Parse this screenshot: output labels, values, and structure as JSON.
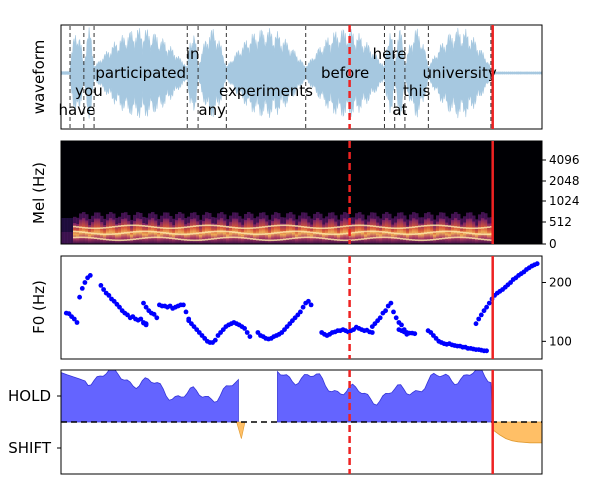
{
  "colors": {
    "waveform": "#a6c8e0",
    "f0_points": "#0000ff",
    "hold_fill": "#6464ff",
    "shift_fill": "#ffbf66",
    "marker_red": "#ee2222",
    "word_lines": "#333333"
  },
  "chart_data": [
    {
      "type": "area",
      "panel": "waveform",
      "ylabel": "waveform",
      "x_range": [
        0,
        8.0
      ],
      "words": [
        {
          "text": "have",
          "start": 0.15,
          "end": 0.38,
          "row": 0
        },
        {
          "text": "you",
          "start": 0.38,
          "end": 0.55,
          "row": 1
        },
        {
          "text": "participated",
          "start": 0.55,
          "end": 2.1,
          "row": 2
        },
        {
          "text": "in",
          "start": 2.1,
          "end": 2.28,
          "row": 3
        },
        {
          "text": "any",
          "start": 2.28,
          "end": 2.75,
          "row": 0
        },
        {
          "text": "experiments",
          "start": 2.75,
          "end": 4.07,
          "row": 1
        },
        {
          "text": "before",
          "start": 4.07,
          "end": 5.38,
          "row": 2
        },
        {
          "text": "here",
          "start": 5.38,
          "end": 5.55,
          "row": 3
        },
        {
          "text": "at",
          "start": 5.55,
          "end": 5.72,
          "row": 0
        },
        {
          "text": "this",
          "start": 5.72,
          "end": 6.11,
          "row": 1
        },
        {
          "text": "university",
          "start": 6.11,
          "end": 7.15,
          "row": 2
        }
      ],
      "vad_end_marker_x": 7.18,
      "prediction_marker_x": 4.8
    },
    {
      "type": "heatmap",
      "panel": "mel-spectrogram",
      "ylabel": "Mel (Hz)",
      "yticks": [
        "0",
        "512",
        "1024",
        "2048",
        "4096"
      ],
      "x_range": [
        0,
        8.0
      ]
    },
    {
      "type": "scatter",
      "panel": "f0",
      "ylabel": "F0 (Hz)",
      "ylim": [
        70,
        245
      ],
      "yticks": [
        "100",
        "200"
      ],
      "segments": [
        {
          "x": [
            0.1,
            0.15,
            0.2,
            0.25,
            0.3,
            0.35,
            0.4,
            0.45,
            0.5,
            0.55
          ],
          "y": [
            148,
            147,
            142,
            138,
            132,
            175,
            190,
            200,
            208,
            212
          ]
        },
        {
          "x": [
            0.75,
            0.8,
            0.85,
            0.9,
            0.95,
            1.0,
            1.05,
            1.1,
            1.15,
            1.2,
            1.25,
            1.3,
            1.35,
            1.4,
            1.45,
            1.5,
            1.55,
            1.6
          ],
          "y": [
            195,
            188,
            182,
            178,
            172,
            168,
            163,
            158,
            152,
            148,
            145,
            140,
            142,
            138,
            136,
            138,
            132,
            130
          ]
        },
        {
          "x": [
            1.55,
            1.6,
            1.65,
            1.7,
            1.75,
            1.8
          ],
          "y": [
            165,
            158,
            152,
            148,
            146,
            140
          ]
        },
        {
          "x": [
            1.55,
            1.6
          ],
          "y": [
            131,
            128
          ]
        },
        {
          "x": [
            1.85,
            1.9,
            1.95,
            2.0,
            2.05,
            2.1,
            2.15,
            2.2,
            2.25,
            2.3,
            2.35,
            2.4
          ],
          "y": [
            162,
            160,
            160,
            158,
            160,
            156,
            158,
            160,
            162,
            162,
            150,
            138
          ]
        },
        {
          "x": [
            2.4,
            2.45,
            2.5,
            2.55,
            2.6,
            2.65,
            2.7,
            2.75,
            2.8,
            2.85,
            2.9,
            2.95,
            3.0,
            3.05,
            3.1,
            3.15,
            3.2,
            3.25,
            3.3,
            3.35,
            3.4,
            3.45,
            3.5,
            3.55
          ],
          "y": [
            135,
            130,
            125,
            120,
            115,
            110,
            105,
            100,
            98,
            98,
            102,
            110,
            115,
            120,
            125,
            128,
            130,
            132,
            130,
            128,
            125,
            122,
            115,
            108
          ]
        },
        {
          "x": [
            3.7,
            3.75,
            3.8,
            3.85,
            3.9,
            3.95,
            4.0,
            4.05,
            4.1,
            4.15,
            4.2,
            4.25,
            4.3,
            4.35,
            4.4,
            4.45,
            4.5,
            4.55,
            4.6,
            4.65,
            4.7
          ],
          "y": [
            115,
            110,
            108,
            105,
            104,
            105,
            108,
            110,
            112,
            115,
            120,
            125,
            130,
            135,
            140,
            145,
            150,
            158,
            165,
            168,
            162
          ]
        },
        {
          "x": [
            4.9,
            4.95,
            5.0,
            5.05,
            5.1,
            5.15,
            5.2,
            5.25,
            5.3,
            5.35,
            5.4,
            5.45,
            5.5,
            5.55,
            5.6,
            5.65,
            5.7,
            5.75,
            5.8,
            5.85
          ],
          "y": [
            115,
            112,
            110,
            112,
            115,
            116,
            118,
            118,
            120,
            118,
            116,
            118,
            120,
            124,
            122,
            120,
            118,
            119,
            116,
            115
          ]
        },
        {
          "x": [
            5.85,
            5.9,
            5.95,
            6.0,
            6.05,
            6.1,
            6.15,
            6.2,
            6.25,
            6.3,
            6.35,
            6.4,
            6.45,
            6.5
          ],
          "y": [
            125,
            130,
            135,
            140,
            148,
            152,
            160,
            165,
            150,
            140,
            132,
            128,
            120,
            112
          ]
        },
        {
          "x": [
            6.35,
            6.4,
            6.45,
            6.5,
            6.55,
            6.6,
            6.65
          ],
          "y": [
            120,
            118,
            116,
            115,
            114,
            114,
            113
          ]
        },
        {
          "x": [
            6.9,
            6.95,
            7.0,
            7.05,
            7.1,
            7.15,
            7.2,
            7.25,
            7.3,
            7.35,
            7.4,
            7.45,
            7.5,
            7.55,
            7.6,
            7.65,
            7.7,
            7.75,
            7.8,
            7.85,
            7.9,
            7.95,
            8.0
          ],
          "y": [
            118,
            115,
            110,
            105,
            100,
            98,
            96,
            95,
            96,
            94,
            93,
            92,
            92,
            90,
            90,
            88,
            88,
            87,
            86,
            86,
            85,
            84,
            84
          ]
        },
        {
          "x": [
            7.8,
            7.85,
            7.9,
            7.95,
            8.0,
            8.05,
            8.1,
            8.15,
            8.2,
            8.25,
            8.3,
            8.35,
            8.4,
            8.45,
            8.5,
            8.55,
            8.6,
            8.65,
            8.7,
            8.75,
            8.8,
            8.85,
            8.9,
            8.95
          ],
          "y": [
            130,
            138,
            145,
            152,
            158,
            165,
            172,
            178,
            182,
            185,
            188,
            192,
            196,
            200,
            205,
            208,
            212,
            215,
            218,
            222,
            225,
            228,
            230,
            232
          ]
        }
      ]
    },
    {
      "type": "area",
      "panel": "turn-taking",
      "yticks": [
        "HOLD",
        "SHIFT"
      ],
      "ylim": [
        -1,
        1
      ],
      "hold_profile": {
        "x": [
          0.0,
          0.1,
          0.2,
          0.3,
          0.4,
          0.5,
          0.6,
          0.7,
          0.8,
          0.9,
          1.0,
          1.1,
          1.2,
          1.3,
          1.4,
          1.5,
          1.6,
          1.7,
          1.8,
          1.9,
          2.0,
          2.1,
          2.2,
          2.3,
          2.4,
          2.5,
          2.6,
          2.7,
          2.8,
          2.9,
          3.0,
          3.1,
          3.2,
          3.3,
          3.4,
          3.5,
          3.6,
          3.7,
          3.8,
          3.9,
          4.0
        ],
        "y": [
          0.95,
          0.92,
          0.9,
          0.85,
          0.8,
          0.78,
          0.7,
          0.72,
          0.68,
          0.6,
          0.65,
          0.7,
          0.58,
          0.62,
          0.55,
          0.5,
          0.6,
          0.62,
          0.48,
          0.52,
          0.45,
          0.55,
          0.6,
          0.5,
          0.42,
          0.4,
          0.35,
          0.3,
          0.25,
          0.15,
          0.05,
          0.0,
          0.0,
          0.0,
          0.0,
          0.0,
          0.05,
          0.1,
          0.2,
          0.35,
          0.5
        ]
      },
      "shift_profile": {
        "x": [
          7.18,
          7.3,
          7.4,
          7.5,
          7.6,
          7.7,
          7.8,
          7.9,
          8.0
        ],
        "y": [
          -0.15,
          -0.25,
          -0.32,
          -0.36,
          -0.38,
          -0.39,
          -0.4,
          -0.4,
          -0.4
        ]
      },
      "threshold": 0.0
    }
  ]
}
